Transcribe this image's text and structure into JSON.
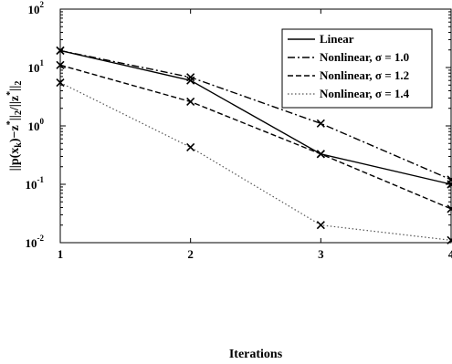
{
  "chart_data": {
    "type": "line",
    "xlabel": "Iterations",
    "ylabel": "||p(x_k)−z*||_2/||z*||_2",
    "x": [
      1,
      2,
      3,
      4
    ],
    "xlim": [
      1,
      4
    ],
    "ylim": [
      0.01,
      100
    ],
    "yscale": "log",
    "xticks": [
      "1",
      "2",
      "3",
      "4"
    ],
    "yticks": [
      {
        "base": "10",
        "exp": "-2",
        "value": 0.01
      },
      {
        "base": "10",
        "exp": "-1",
        "value": 0.1
      },
      {
        "base": "10",
        "exp": "0",
        "value": 1
      },
      {
        "base": "10",
        "exp": "1",
        "value": 10
      },
      {
        "base": "10",
        "exp": "2",
        "value": 100
      }
    ],
    "grid": false,
    "legend_position": "top-right",
    "series": [
      {
        "name": "Linear",
        "values": [
          19.5,
          6.0,
          0.33,
          0.1
        ],
        "style": "solid",
        "color": "#000000"
      },
      {
        "name": "Nonlinear, σ = 1.0",
        "values": [
          19.5,
          6.8,
          1.1,
          0.12
        ],
        "style": "dashdot",
        "color": "#000000"
      },
      {
        "name": "Nonlinear, σ = 1.2",
        "values": [
          11.0,
          2.6,
          0.33,
          0.038
        ],
        "style": "dashed",
        "color": "#000000"
      },
      {
        "name": "Nonlinear, σ = 1.4",
        "values": [
          5.5,
          0.43,
          0.02,
          0.011
        ],
        "style": "dotted",
        "color": "#555555"
      }
    ]
  }
}
